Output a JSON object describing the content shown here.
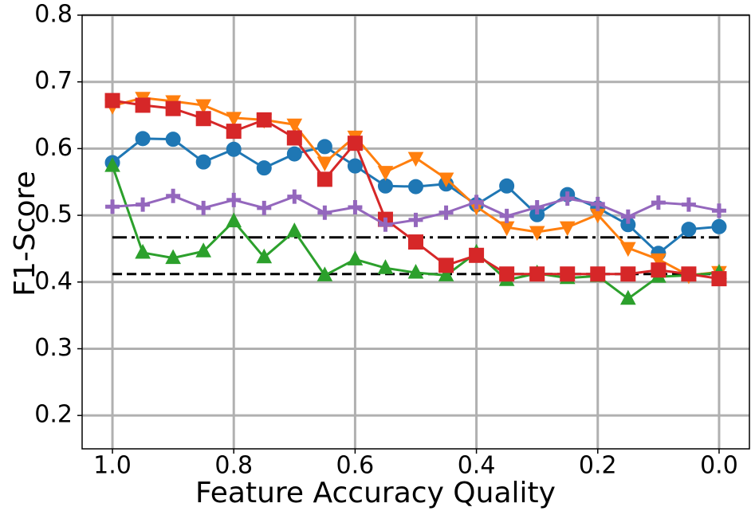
{
  "chart_data": {
    "type": "line",
    "xlabel": "Feature Accuracy Quality",
    "ylabel": "F1-Score",
    "x": [
      1.0,
      0.95,
      0.9,
      0.85,
      0.8,
      0.75,
      0.7,
      0.65,
      0.6,
      0.55,
      0.5,
      0.45,
      0.4,
      0.35,
      0.3,
      0.25,
      0.2,
      0.15,
      0.1,
      0.05,
      0.0
    ],
    "xlim": [
      1.05,
      -0.05
    ],
    "xticks": [
      {
        "value": 1,
        "label": "1.0"
      },
      0.8,
      0.6,
      0.4,
      0.2,
      {
        "value": 0,
        "label": "0.0"
      }
    ],
    "ylim": [
      0.15,
      0.8
    ],
    "yticks": [
      0.2,
      0.3,
      0.4,
      0.5,
      0.6,
      0.7,
      0.8
    ],
    "grid": true,
    "series": [
      {
        "color": "#1f77b4",
        "marker": "circle",
        "values": [
          0.579,
          0.615,
          0.614,
          0.58,
          0.599,
          0.571,
          0.592,
          0.603,
          0.574,
          0.544,
          0.543,
          0.547,
          0.516,
          0.544,
          0.501,
          0.531,
          0.511,
          0.486,
          0.443,
          0.479,
          0.483
        ]
      },
      {
        "color": "#ff7f0e",
        "marker": "triangle-down",
        "values": [
          0.664,
          0.676,
          0.671,
          0.665,
          0.646,
          0.643,
          0.636,
          0.579,
          0.618,
          0.565,
          0.586,
          0.555,
          0.513,
          0.482,
          0.475,
          0.482,
          0.501,
          0.451,
          0.434,
          0.41,
          0.415
        ]
      },
      {
        "color": "#2ca02c",
        "marker": "triangle-up",
        "values": [
          0.574,
          0.444,
          0.436,
          0.446,
          0.491,
          0.437,
          0.476,
          0.41,
          0.434,
          0.421,
          0.414,
          0.41,
          0.444,
          0.403,
          0.413,
          0.406,
          0.409,
          0.375,
          0.408,
          0.41,
          0.414
        ]
      },
      {
        "color": "#d62728",
        "marker": "square",
        "values": [
          0.672,
          0.665,
          0.66,
          0.645,
          0.626,
          0.643,
          0.616,
          0.554,
          0.608,
          0.494,
          0.46,
          0.425,
          0.44,
          0.412,
          0.412,
          0.412,
          0.412,
          0.412,
          0.418,
          0.412,
          0.405
        ]
      },
      {
        "color": "#9467bd",
        "marker": "plus",
        "values": [
          0.513,
          0.516,
          0.529,
          0.511,
          0.523,
          0.511,
          0.528,
          0.504,
          0.512,
          0.486,
          0.493,
          0.504,
          0.52,
          0.499,
          0.512,
          0.525,
          0.517,
          0.498,
          0.519,
          0.516,
          0.507
        ]
      }
    ],
    "hlines": [
      {
        "value": 0.467,
        "style": "dashdot",
        "color": "#000000"
      },
      {
        "value": 0.412,
        "style": "dashed",
        "color": "#000000"
      }
    ]
  }
}
